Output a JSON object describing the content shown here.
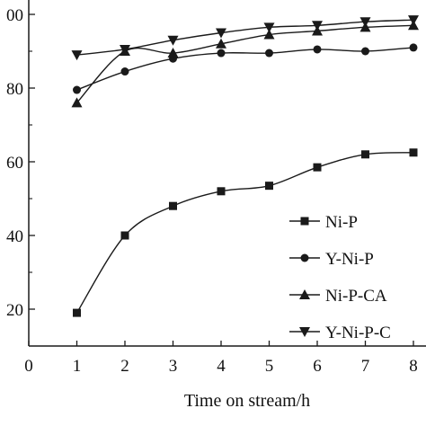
{
  "chart_data": {
    "type": "line",
    "xlabel": "Time on stream/h",
    "ylabel": "",
    "x": [
      1,
      2,
      3,
      4,
      5,
      6,
      7,
      8
    ],
    "xlim": [
      0,
      8
    ],
    "ylim": [
      10,
      100
    ],
    "x_ticks": [
      "0",
      "1",
      "2",
      "3",
      "4",
      "5",
      "6",
      "7",
      "8"
    ],
    "y_ticks_visible": [
      "20",
      "40",
      "60",
      "80",
      "00"
    ],
    "grid": false,
    "legend_position": "bottom-right",
    "series": [
      {
        "name": "Ni-P",
        "marker": "square",
        "values": [
          19,
          40,
          48,
          52,
          53.5,
          58.5,
          62,
          62.5
        ]
      },
      {
        "name": "Y-Ni-P",
        "marker": "circle",
        "values": [
          79.5,
          84.5,
          88,
          89.5,
          89.5,
          90.5,
          90,
          91
        ]
      },
      {
        "name": "Ni-P-CA",
        "marker": "triangle-up",
        "values": [
          76,
          90,
          89.5,
          92,
          94.5,
          95.5,
          96.5,
          97
        ]
      },
      {
        "name": "Y-Ni-P-C",
        "marker": "triangle-down",
        "values": [
          89,
          90.5,
          93,
          95,
          96.5,
          97,
          98,
          98.5
        ]
      }
    ],
    "line_color": "#1a1a1a"
  }
}
